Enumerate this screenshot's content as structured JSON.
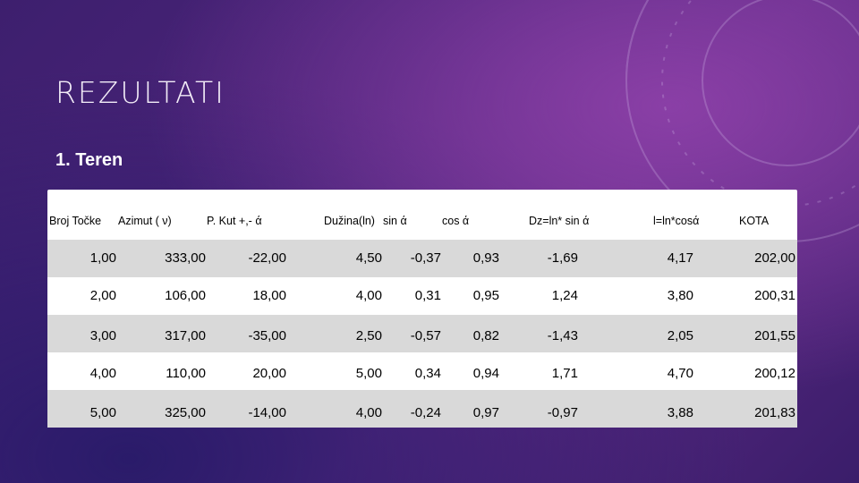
{
  "title": "REZULTATI",
  "subtitle": "1. Teren",
  "table": {
    "headers": [
      "Broj Točke",
      "Azimut ( ν)",
      "P. Kut +,- ά",
      "Dužina(ln)",
      "sin ά",
      "cos ά",
      "Dz=ln* sin ά",
      "l=ln*cosά",
      "KOTA"
    ],
    "rows": [
      [
        "1,00",
        "333,00",
        "-22,00",
        "4,50",
        "-0,37",
        "0,93",
        "-1,69",
        "4,17",
        "202,00"
      ],
      [
        "2,00",
        "106,00",
        "18,00",
        "4,00",
        "0,31",
        "0,95",
        "1,24",
        "3,80",
        "200,31"
      ],
      [
        "3,00",
        "317,00",
        "-35,00",
        "2,50",
        "-0,57",
        "0,82",
        "-1,43",
        "2,05",
        "201,55"
      ],
      [
        "4,00",
        "110,00",
        "20,00",
        "5,00",
        "0,34",
        "0,94",
        "1,71",
        "4,70",
        "200,12"
      ],
      [
        "5,00",
        "325,00",
        "-14,00",
        "4,00",
        "-0,24",
        "0,97",
        "-0,97",
        "3,88",
        "201,83"
      ]
    ]
  },
  "colors": {
    "background": "#4b2479",
    "row_band": "#d9d9d9",
    "title": "#f2ecf7"
  }
}
